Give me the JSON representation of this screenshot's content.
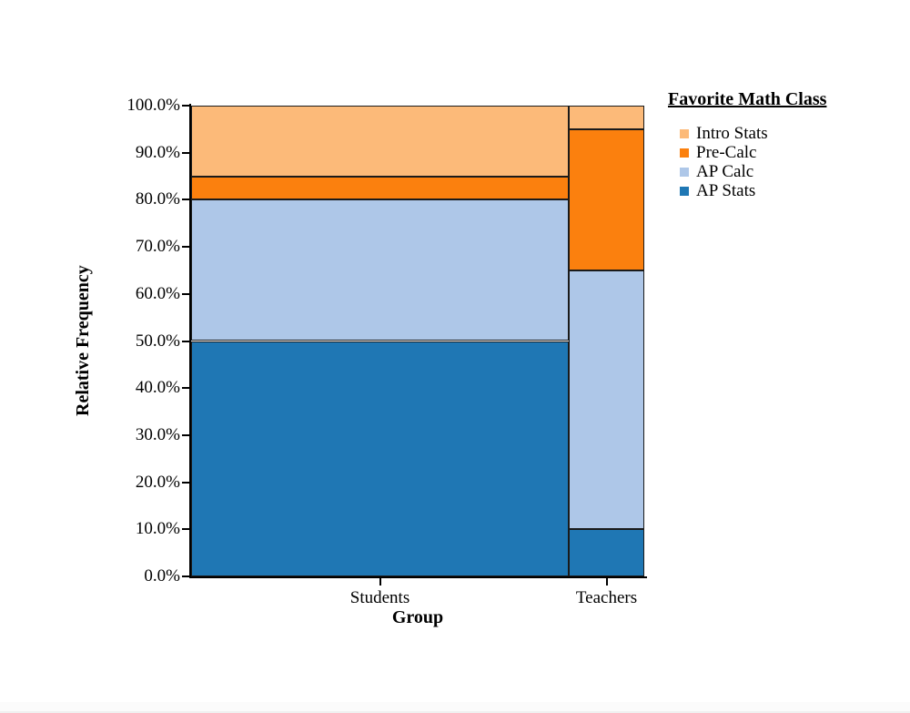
{
  "page": {
    "background": "#ffffff"
  },
  "chart_data": {
    "type": "mosaic-stacked-bar",
    "title": "",
    "xlabel": "Group",
    "ylabel": "Relative Frequency",
    "categories": [
      "Students",
      "Teachers"
    ],
    "bar_width_fractions": [
      0.833,
      0.167
    ],
    "series": [
      {
        "name": "AP Stats",
        "color": "#1f77b4",
        "values": [
          50,
          10
        ]
      },
      {
        "name": "AP Calc",
        "color": "#aec7e8",
        "values": [
          30,
          55
        ]
      },
      {
        "name": "Pre-Calc",
        "color": "#fb800e",
        "values": [
          5,
          30
        ]
      },
      {
        "name": "Intro Stats",
        "color": "#fcba79",
        "values": [
          15,
          5
        ]
      }
    ],
    "y_axis": {
      "min": 0,
      "max": 100,
      "tick_step": 10,
      "tick_labels": [
        "0.0%",
        "10.0%",
        "20.0%",
        "30.0%",
        "40.0%",
        "50.0%",
        "60.0%",
        "70.0%",
        "80.0%",
        "90.0%",
        "100.0%"
      ],
      "unit": "percent"
    },
    "ylim": [
      0,
      100
    ],
    "grid": false,
    "axis_color": "#000000",
    "segment_border_color": "#1a1a1a",
    "legend": {
      "title": "Favorite Math Class",
      "position": "top-right",
      "items_top_to_bottom": [
        "Intro Stats",
        "Pre-Calc",
        "AP Calc",
        "AP Stats"
      ]
    }
  }
}
